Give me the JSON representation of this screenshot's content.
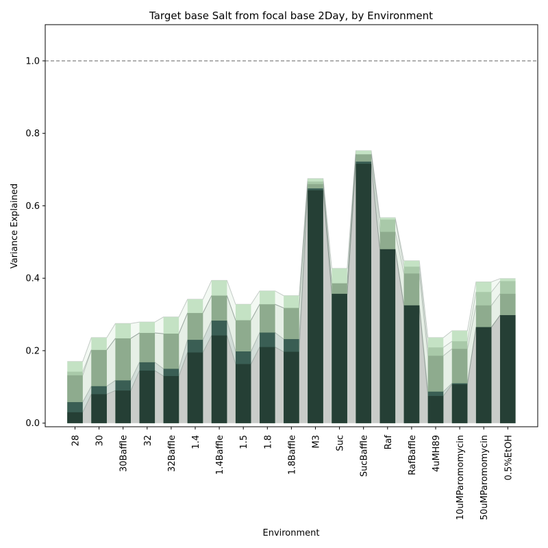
{
  "chart_data": {
    "type": "bar",
    "title": "Target base Salt from focal base 2Day, by Environment",
    "xlabel": "Environment",
    "ylabel": "Variance Explained",
    "ylim": [
      -0.01,
      1.1
    ],
    "yticks": [
      0.0,
      0.2,
      0.4,
      0.6,
      0.8,
      1.0
    ],
    "ytick_labels": [
      "0.0",
      "0.2",
      "0.4",
      "0.6",
      "0.8",
      "1.0"
    ],
    "reference_line": 1.0,
    "categories": [
      "28",
      "30",
      "30Baffle",
      "32",
      "32Baffle",
      "1.4",
      "1.4Baffle",
      "1.5",
      "1.8",
      "1.8Baffle",
      "M3",
      "Suc",
      "SucBaffle",
      "Raf",
      "RafBaffle",
      "4uMH89",
      "10uMParomomycin",
      "50uMParomomycin",
      "0.5%EtOH"
    ],
    "series": [
      {
        "color": "#253f35",
        "values": [
          0.03,
          0.08,
          0.09,
          0.145,
          0.13,
          0.195,
          0.242,
          0.163,
          0.21,
          0.197,
          0.643,
          0.357,
          0.716,
          0.48,
          0.325,
          0.075,
          0.107,
          0.265,
          0.298
        ]
      },
      {
        "color": "#3a5e54",
        "values": [
          0.058,
          0.102,
          0.118,
          0.168,
          0.15,
          0.23,
          0.283,
          0.198,
          0.25,
          0.232,
          0.648,
          0.357,
          0.722,
          0.48,
          0.325,
          0.087,
          0.11,
          0.265,
          0.298
        ]
      },
      {
        "color": "#8eab8e",
        "values": [
          0.132,
          0.202,
          0.234,
          0.249,
          0.247,
          0.304,
          0.352,
          0.284,
          0.328,
          0.318,
          0.66,
          0.386,
          0.742,
          0.528,
          0.413,
          0.186,
          0.205,
          0.325,
          0.357
        ]
      },
      {
        "color": "#a9c9a9",
        "values": [
          0.142,
          0.202,
          0.234,
          0.249,
          0.247,
          0.304,
          0.352,
          0.284,
          0.328,
          0.318,
          0.667,
          0.386,
          0.742,
          0.562,
          0.432,
          0.209,
          0.226,
          0.362,
          0.392
        ]
      },
      {
        "color": "#c4e2c4",
        "values": [
          0.17,
          0.236,
          0.275,
          0.279,
          0.293,
          0.342,
          0.394,
          0.328,
          0.365,
          0.352,
          0.675,
          0.427,
          0.752,
          0.567,
          0.448,
          0.236,
          0.255,
          0.39,
          0.399
        ]
      }
    ]
  }
}
